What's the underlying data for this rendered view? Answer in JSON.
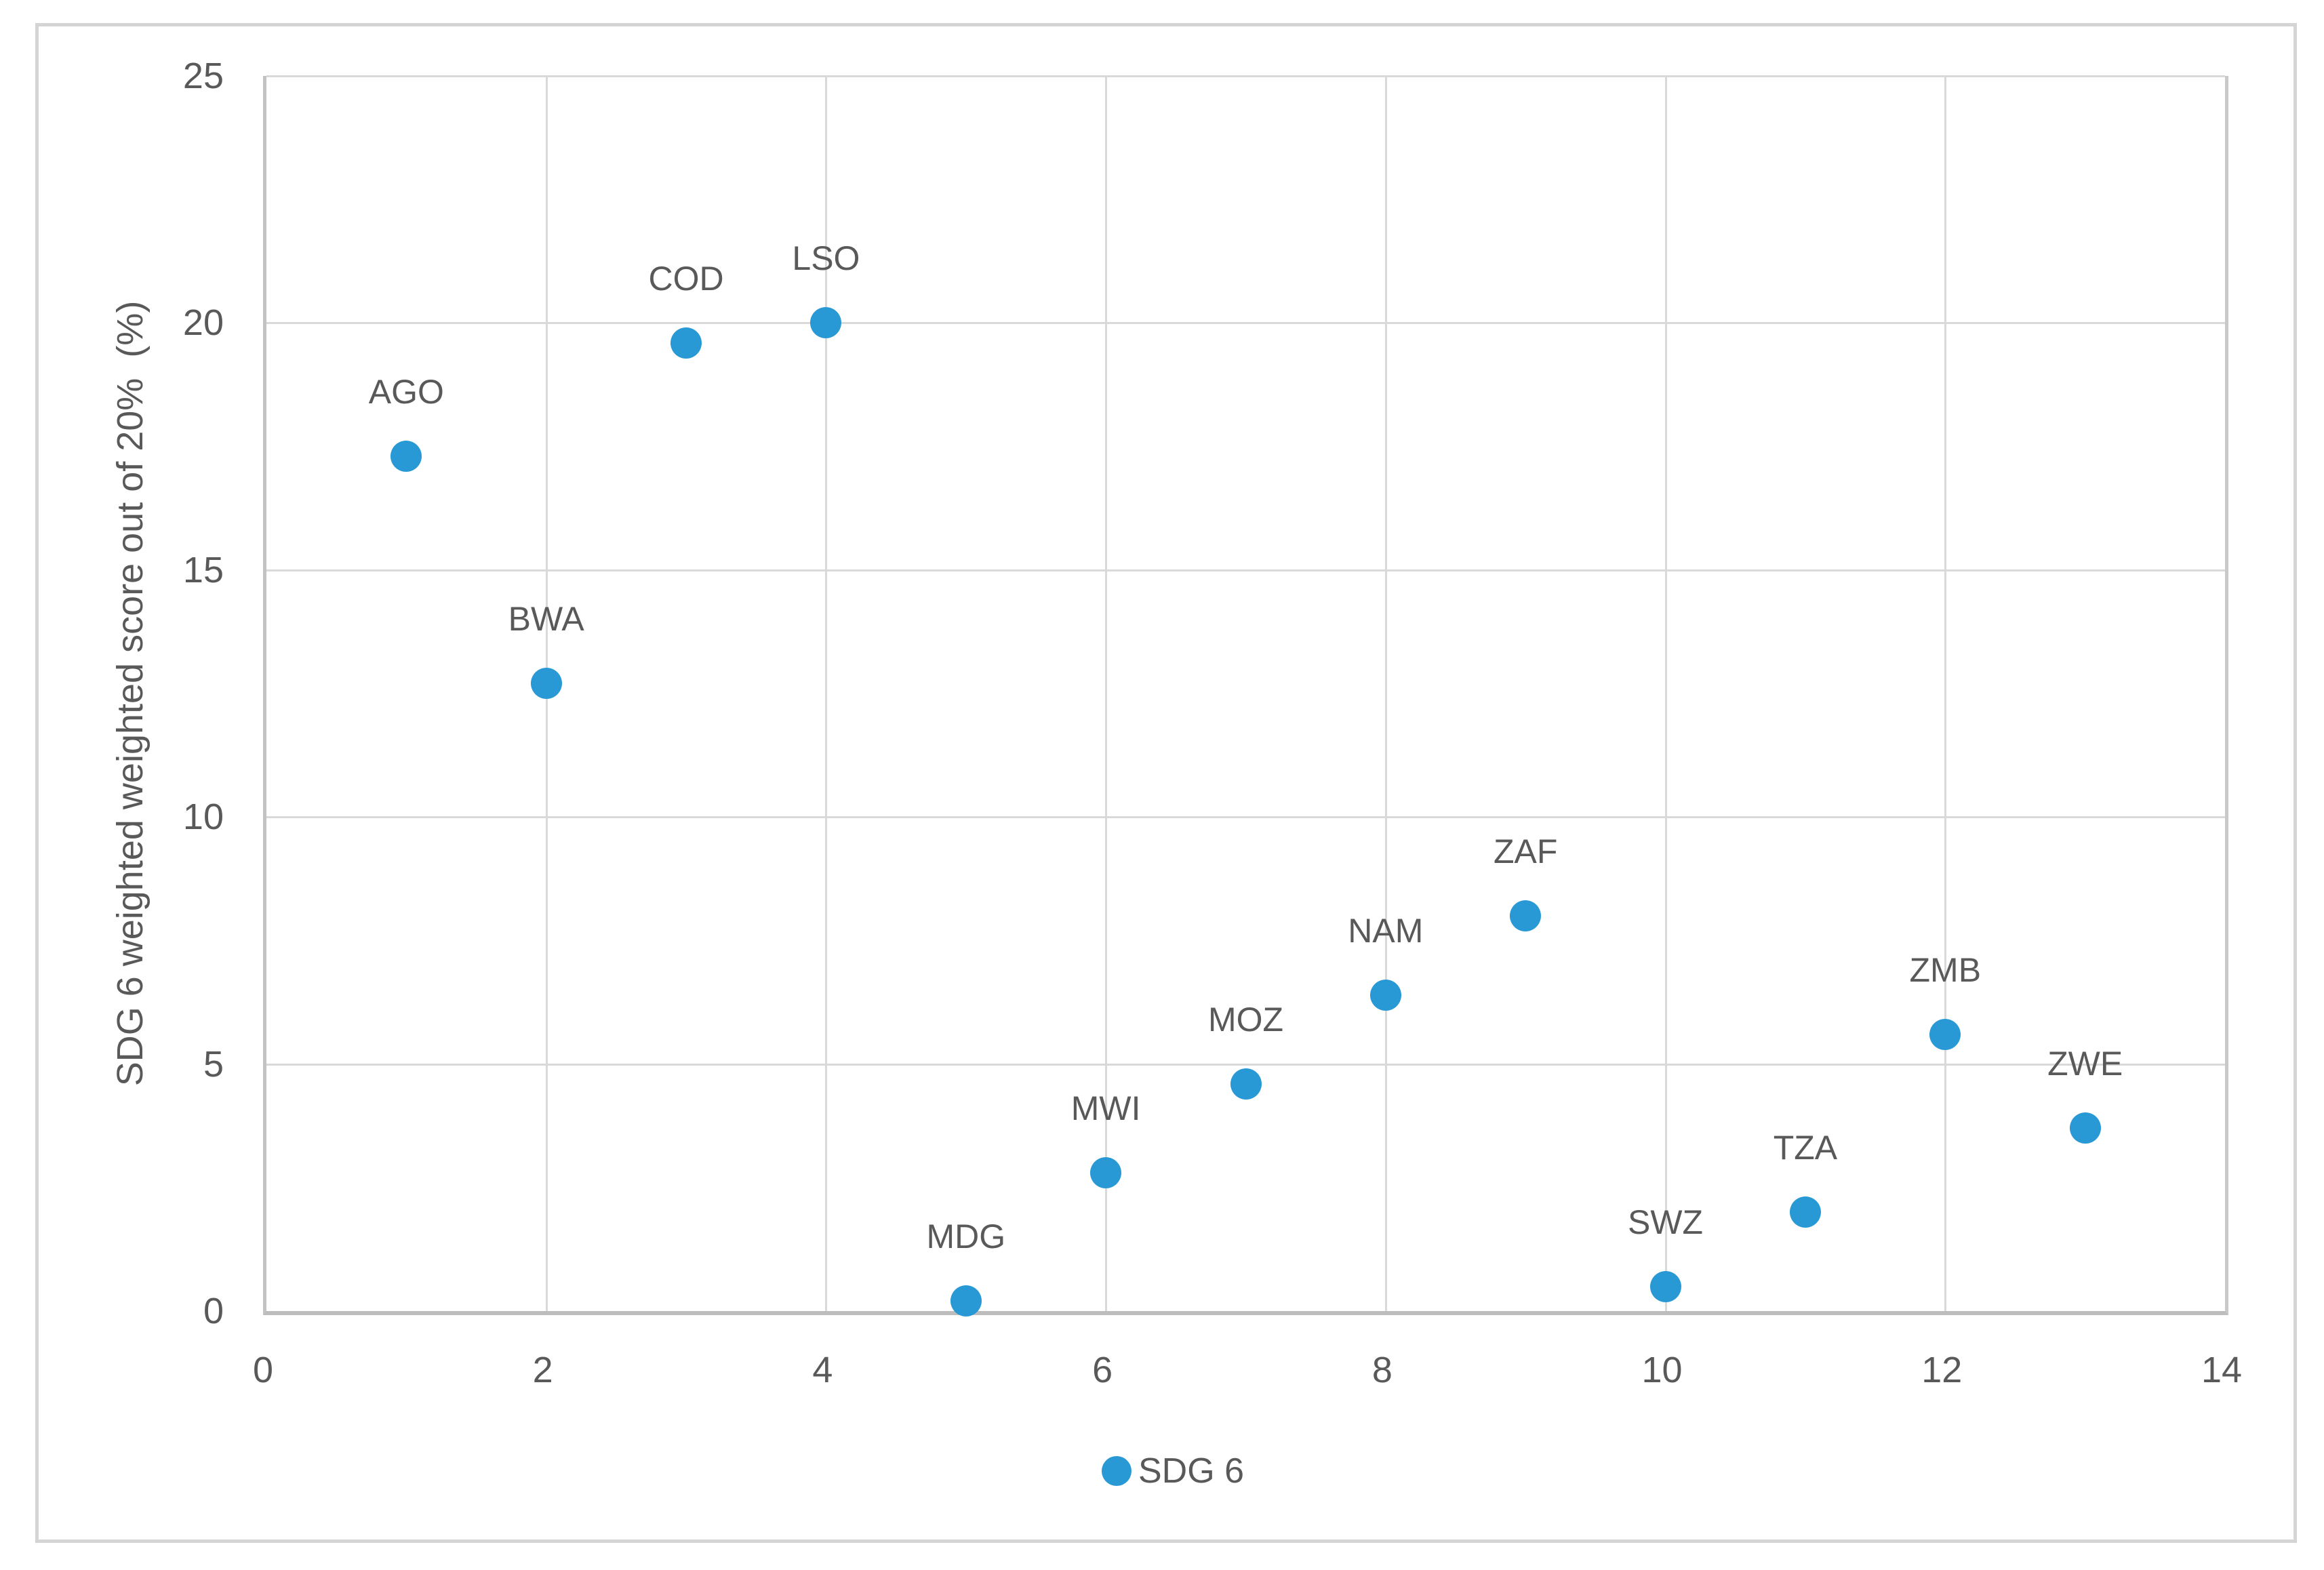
{
  "figure": {
    "background": "#ffffff",
    "frame_color": "#d4d4d4"
  },
  "colors": {
    "marker": "#2999d6",
    "gridline": "#d9d9d9",
    "axis_line": "#bdbdbd",
    "text": "#595959"
  },
  "legend": {
    "label": "SDG 6"
  },
  "chart_data": {
    "type": "scatter",
    "title": "",
    "xlabel": "",
    "ylabel": "SDG 6 weighted weighted score out of 20%  (%)",
    "xlim": [
      0,
      14
    ],
    "ylim": [
      0,
      25
    ],
    "x_ticks": [
      0,
      2,
      4,
      6,
      8,
      10,
      12,
      14
    ],
    "y_ticks": [
      0,
      5,
      10,
      15,
      20,
      25
    ],
    "grid": true,
    "legend_position": "bottom-center",
    "series_name": "SDG 6",
    "marker_color": "#2999d6",
    "points": [
      {
        "label": "AGO",
        "x": 1,
        "y": 17.3
      },
      {
        "label": "BWA",
        "x": 2,
        "y": 12.7
      },
      {
        "label": "COD",
        "x": 3,
        "y": 19.6
      },
      {
        "label": "LSO",
        "x": 4,
        "y": 20.0
      },
      {
        "label": "MDG",
        "x": 5,
        "y": 0.2
      },
      {
        "label": "MWI",
        "x": 6,
        "y": 2.8
      },
      {
        "label": "MOZ",
        "x": 7,
        "y": 4.6
      },
      {
        "label": "NAM",
        "x": 8,
        "y": 6.4
      },
      {
        "label": "ZAF",
        "x": 9,
        "y": 8.0
      },
      {
        "label": "SWZ",
        "x": 10,
        "y": 0.5
      },
      {
        "label": "TZA",
        "x": 11,
        "y": 2.0
      },
      {
        "label": "ZMB",
        "x": 12,
        "y": 5.6
      },
      {
        "label": "ZWE",
        "x": 13,
        "y": 3.7
      }
    ]
  }
}
